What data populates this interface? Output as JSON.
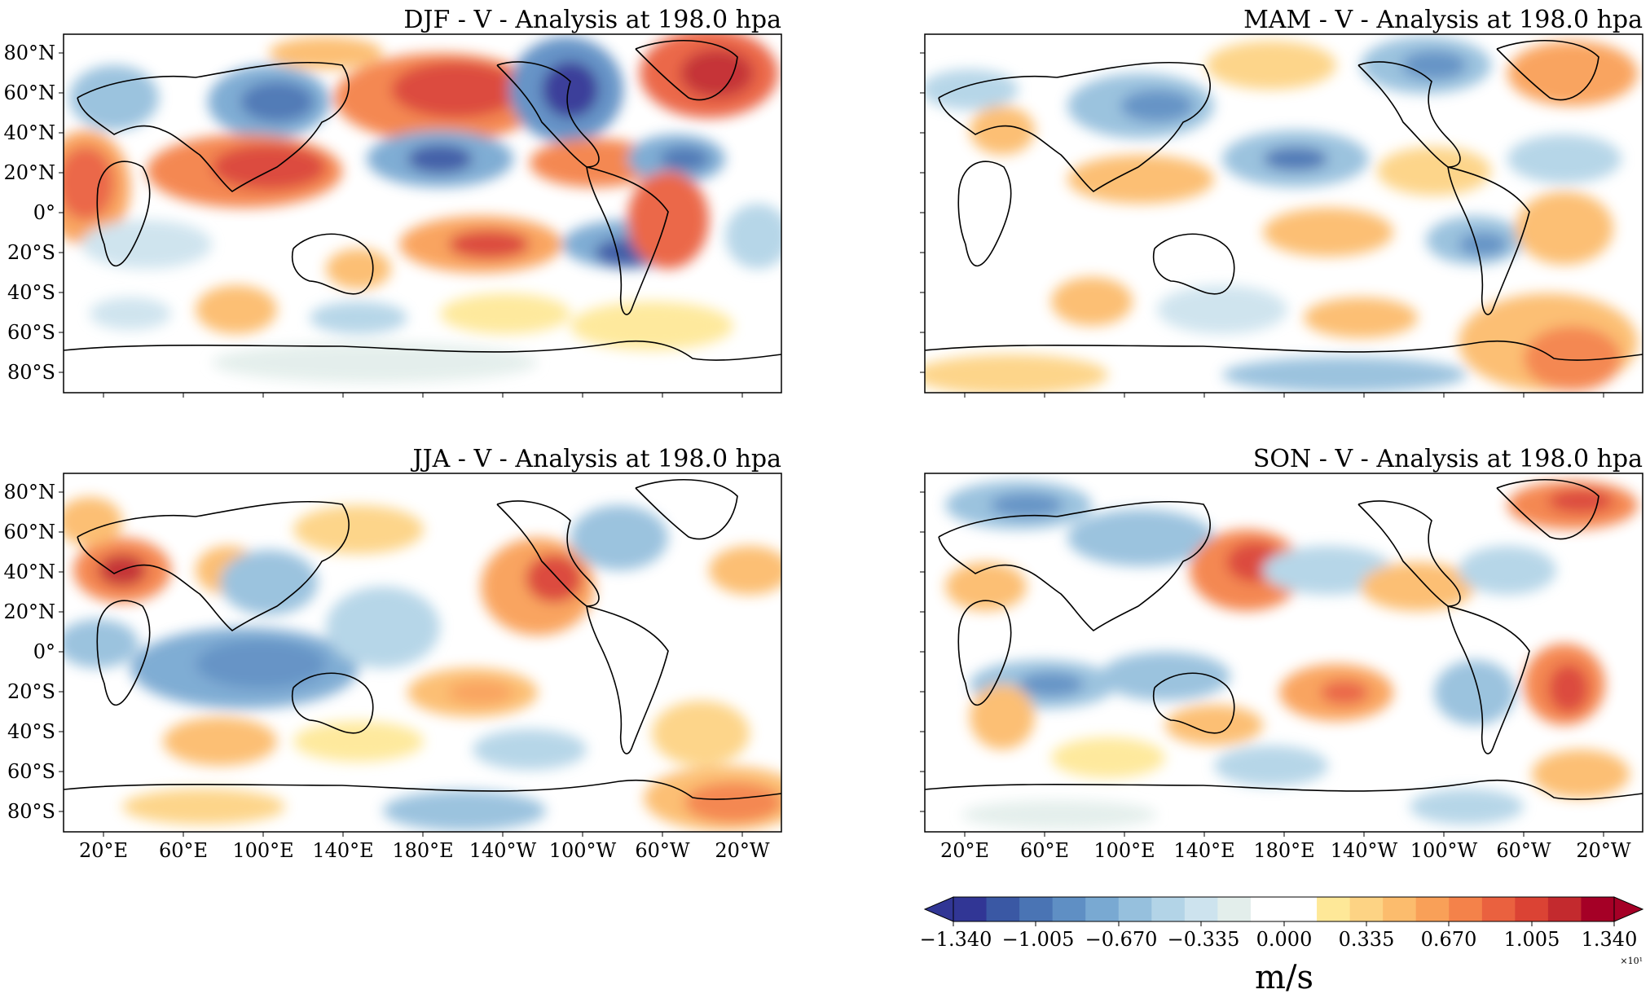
{
  "figure": {
    "panels": [
      {
        "title": "DJF - V - Analysis at 198.0 hpa",
        "show_lat_labels": true,
        "show_lon_labels": false
      },
      {
        "title": "MAM - V - Analysis at 198.0 hpa",
        "show_lat_labels": false,
        "show_lon_labels": false
      },
      {
        "title": "JJA - V - Analysis at 198.0 hpa",
        "show_lat_labels": true,
        "show_lon_labels": true
      },
      {
        "title": "SON - V - Analysis at 198.0 hpa",
        "show_lat_labels": false,
        "show_lon_labels": true
      }
    ],
    "lat_ticks": [
      "80°N",
      "60°N",
      "40°N",
      "20°N",
      "0°",
      "20°S",
      "40°S",
      "60°S",
      "80°S"
    ],
    "lon_ticks": [
      "20°E",
      "60°E",
      "100°E",
      "140°E",
      "180°E",
      "140°W",
      "100°W",
      "60°W",
      "20°W"
    ],
    "colorbar": {
      "tick_labels": [
        "−1.340",
        "−1.005",
        "−0.670",
        "−0.335",
        "0.000",
        "0.335",
        "0.670",
        "1.005",
        "1.340"
      ],
      "sci_label": "×10¹",
      "units": "m/s"
    },
    "colors": {
      "neg": [
        "#313695",
        "#3a58a4",
        "#4a74b4",
        "#5f8fc4",
        "#79a9d2",
        "#96c0dd",
        "#b3d4e7",
        "#cde3ee",
        "#e3eeeb"
      ],
      "zero": "#ffffff",
      "pos": [
        "#fee898",
        "#fdd384",
        "#fcbc6d",
        "#f9a058",
        "#f4824a",
        "#ea613f",
        "#db4334",
        "#c32a2e",
        "#a50026"
      ]
    }
  },
  "chart_data": [
    {
      "type": "heatmap",
      "title": "DJF - V - Analysis at 198.0 hpa",
      "units": "m/s",
      "scale": "×10¹",
      "color_range": [
        -1.34,
        1.34
      ],
      "centers": [
        {
          "lon": 20,
          "lat": 20,
          "v": 0.9
        },
        {
          "lon": 100,
          "lat": 55,
          "v": -0.8
        },
        {
          "lon": 165,
          "lat": 55,
          "v": 0.9
        },
        {
          "lon": 180,
          "lat": 25,
          "v": -0.9
        },
        {
          "lon": 255,
          "lat": 60,
          "v": -1.3
        },
        {
          "lon": 320,
          "lat": 60,
          "v": 1.1
        },
        {
          "lon": 280,
          "lat": -20,
          "v": -1.1
        },
        {
          "lon": 225,
          "lat": -20,
          "v": 0.8
        }
      ]
    },
    {
      "type": "heatmap",
      "title": "MAM - V - Analysis at 198.0 hpa",
      "units": "m/s",
      "scale": "×10¹",
      "color_range": [
        -1.34,
        1.34
      ],
      "centers": [
        {
          "lon": 40,
          "lat": 35,
          "v": 0.5
        },
        {
          "lon": 70,
          "lat": 40,
          "v": -0.6
        },
        {
          "lon": 170,
          "lat": 25,
          "v": -0.7
        },
        {
          "lon": 240,
          "lat": 55,
          "v": -0.6
        },
        {
          "lon": 325,
          "lat": 55,
          "v": 0.6
        }
      ]
    },
    {
      "type": "heatmap",
      "title": "JJA - V - Analysis at 198.0 hpa",
      "units": "m/s",
      "scale": "×10¹",
      "color_range": [
        -1.34,
        1.34
      ],
      "centers": [
        {
          "lon": 35,
          "lat": 35,
          "v": 1.1
        },
        {
          "lon": 100,
          "lat": -10,
          "v": -0.7
        },
        {
          "lon": 235,
          "lat": 40,
          "v": 0.9
        },
        {
          "lon": 200,
          "lat": -20,
          "v": 0.5
        }
      ]
    },
    {
      "type": "heatmap",
      "title": "SON - V - Analysis at 198.0 hpa",
      "units": "m/s",
      "scale": "×10¹",
      "color_range": [
        -1.34,
        1.34
      ],
      "centers": [
        {
          "lon": 140,
          "lat": 40,
          "v": 1.0
        },
        {
          "lon": 320,
          "lat": 70,
          "v": 0.8
        },
        {
          "lon": 210,
          "lat": -20,
          "v": 0.7
        },
        {
          "lon": 320,
          "lat": -20,
          "v": 0.8
        },
        {
          "lon": 300,
          "lat": -10,
          "v": -0.6
        },
        {
          "lon": 45,
          "lat": -20,
          "v": -0.6
        }
      ]
    }
  ]
}
